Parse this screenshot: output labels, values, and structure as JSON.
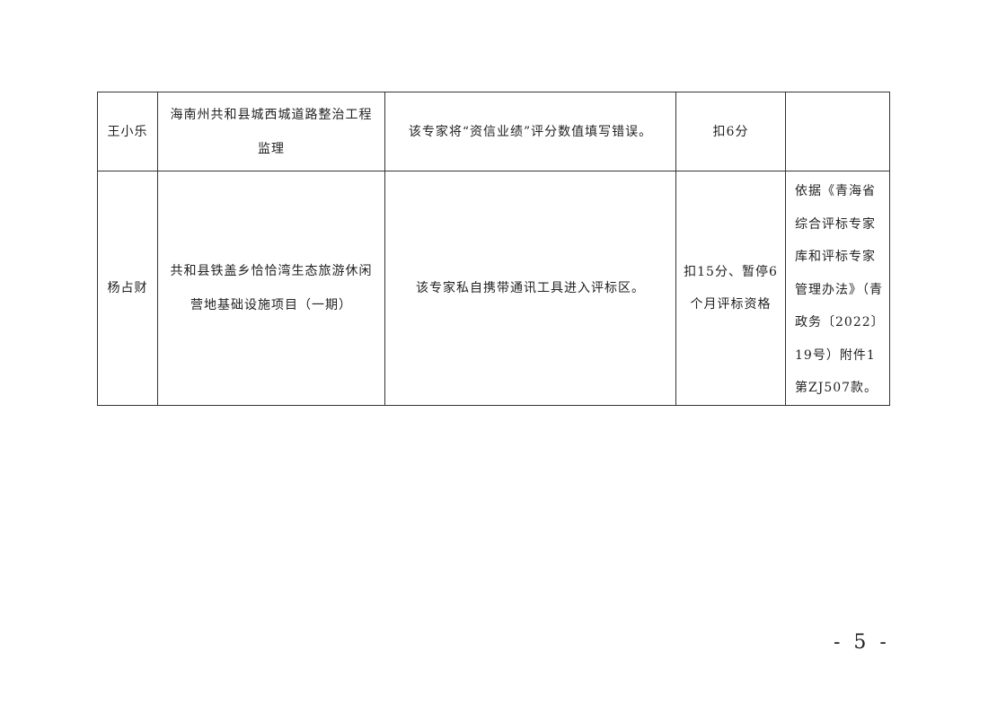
{
  "table": {
    "rows": [
      {
        "name": "王小乐",
        "project_lines": [
          "海南州共和县城西城道路整治工程",
          "监理"
        ],
        "issue": "该专家将“资信业绩”评分数值填写错误。",
        "penalty_lines": [
          "扣6分"
        ],
        "basis_lines": []
      },
      {
        "name": "杨占财",
        "project_lines": [
          "共和县铁盖乡恰恰湾生态旅游休闲",
          "营地基础设施项目（一期）"
        ],
        "issue": "该专家私自携带通讯工具进入评标区。",
        "penalty_lines": [
          "扣15分、暂停6",
          "个月评标资格"
        ],
        "basis_lines": [
          "依据《青海省",
          "综合评标专家",
          "库和评标专家",
          "管理办法》（青",
          "政务〔2022〕",
          "19号）附件1",
          "第ZJ507款。"
        ]
      }
    ]
  },
  "page_number": "- 5 -"
}
